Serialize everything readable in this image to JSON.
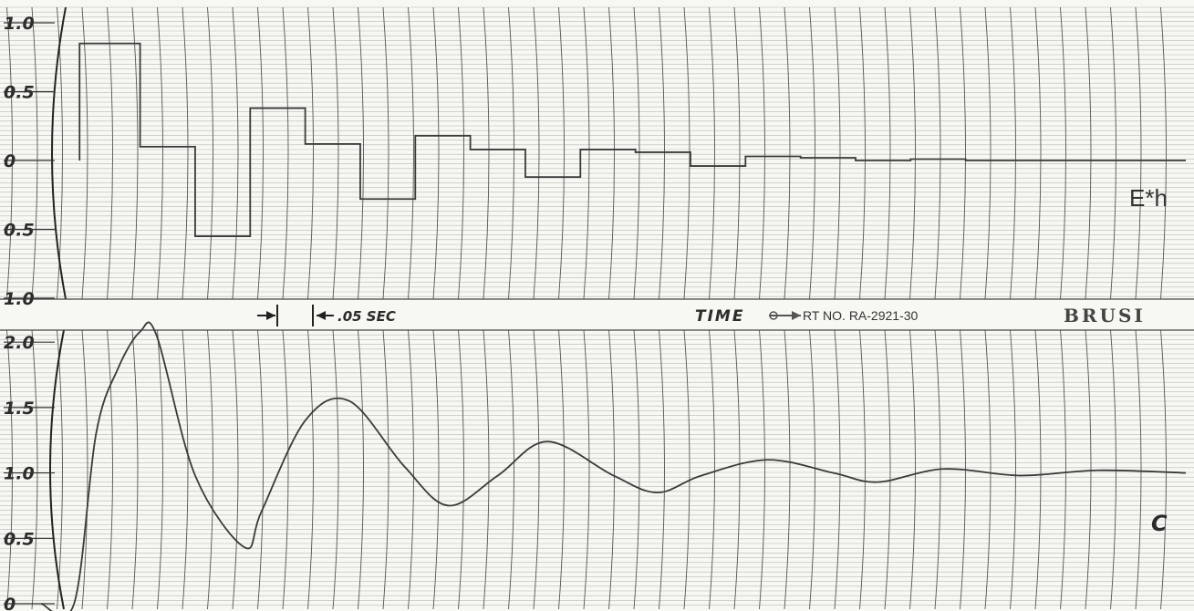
{
  "chart_data": [
    {
      "type": "line",
      "step": true,
      "series": [
        {
          "name": "E*h",
          "x": [
            0.0,
            0.05,
            0.1,
            0.15,
            0.2,
            0.25,
            0.3,
            0.35,
            0.4,
            0.45,
            0.5,
            0.55,
            0.6,
            0.65,
            0.7,
            0.75,
            0.8,
            0.85,
            0.9,
            0.95,
            1.0
          ],
          "values": [
            0.85,
            0.1,
            -0.55,
            0.38,
            0.12,
            -0.28,
            0.18,
            0.08,
            -0.12,
            0.08,
            0.06,
            -0.04,
            0.03,
            0.02,
            0.0,
            0.01,
            0.0,
            0.0,
            0.0,
            0.0,
            0.0
          ]
        }
      ],
      "ytick_labels": [
        "1.0",
        "0.5",
        "0",
        "0.5",
        "1.0"
      ],
      "ylim": [
        -1.0,
        1.0
      ],
      "xlim": [
        -0.04,
        1.0
      ],
      "series_label": "E*h",
      "grid": true
    },
    {
      "type": "line",
      "series": [
        {
          "name": "C",
          "x": [
            -0.04,
            -0.01,
            0.01,
            0.03,
            0.05,
            0.065,
            0.1,
            0.145,
            0.16,
            0.2,
            0.24,
            0.29,
            0.33,
            0.375,
            0.42,
            0.48,
            0.52,
            0.56,
            0.62,
            0.68,
            0.72,
            0.78,
            0.85,
            0.92,
            1.0
          ],
          "values": [
            0.0,
            0.0,
            1.3,
            1.8,
            2.08,
            2.05,
            0.98,
            0.43,
            0.7,
            1.4,
            1.55,
            1.05,
            0.75,
            0.98,
            1.24,
            0.98,
            0.85,
            0.98,
            1.1,
            1.0,
            0.93,
            1.03,
            0.98,
            1.02,
            1.0
          ]
        }
      ],
      "ytick_labels": [
        "2.0",
        "1.5",
        "1.0",
        "0.5",
        "0"
      ],
      "ylim": [
        0,
        2.05
      ],
      "xlim": [
        -0.04,
        1.0
      ],
      "series_label": "C",
      "grid": true
    }
  ],
  "strip": {
    "time_mark": ".05 SEC",
    "time_label": "TIME",
    "chart_no": "RT NO. RA-2921-30",
    "brand": "BRUSI"
  },
  "colors": {
    "paper": "#f7f7f3",
    "grid_major": "#555555",
    "grid_minor": "#b8b8b8",
    "trace": "#3a3a3a"
  }
}
